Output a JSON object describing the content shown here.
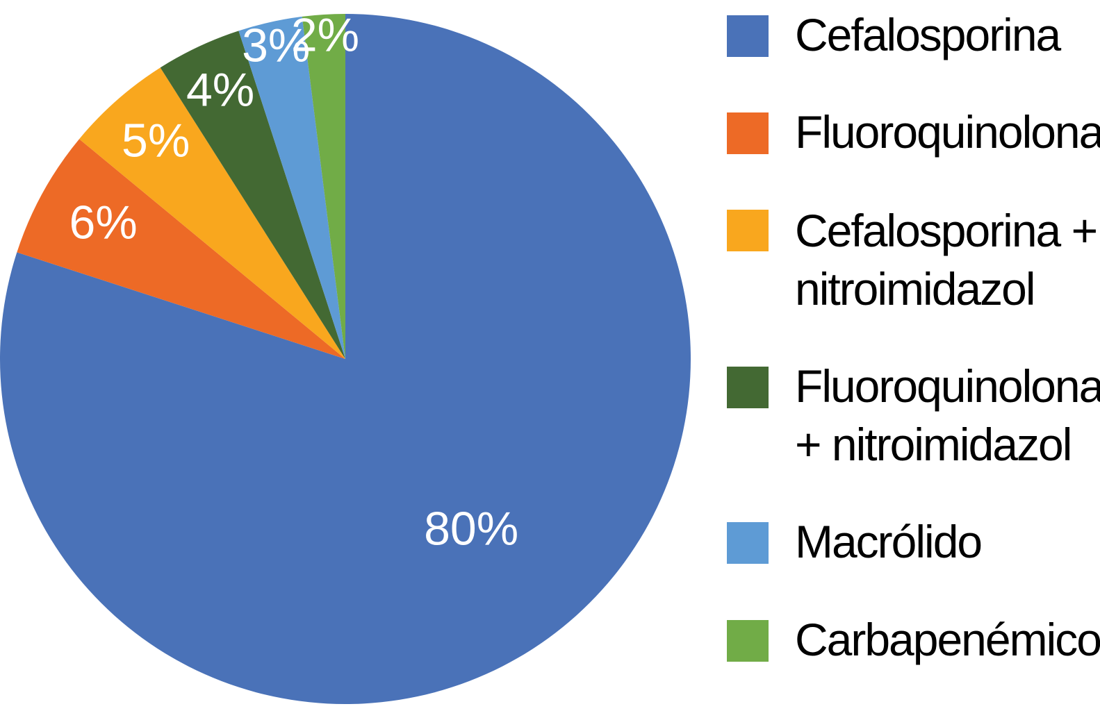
{
  "chart_data": {
    "type": "pie",
    "start_angle": "top",
    "direction": "counterclockwise",
    "legend_position": "right",
    "slices": [
      {
        "label": "Cefalosporina",
        "value": 80,
        "value_label": "80%",
        "color": "#4A72B8"
      },
      {
        "label": "Fluoroquinolona",
        "value": 6,
        "value_label": "6%",
        "color": "#ED6A26"
      },
      {
        "label": "Cefalosporina + nitroimidazol",
        "value": 5,
        "value_label": "5%",
        "color": "#F9A71E"
      },
      {
        "label": "Fluoroquinolona + nitroimidazol",
        "value": 4,
        "value_label": "4%",
        "color": "#436933"
      },
      {
        "label": "Macrólido",
        "value": 3,
        "value_label": "3%",
        "color": "#5E9BD5"
      },
      {
        "label": "Carbapenémico",
        "value": 2,
        "value_label": "2%",
        "color": "#71AC47"
      }
    ]
  }
}
